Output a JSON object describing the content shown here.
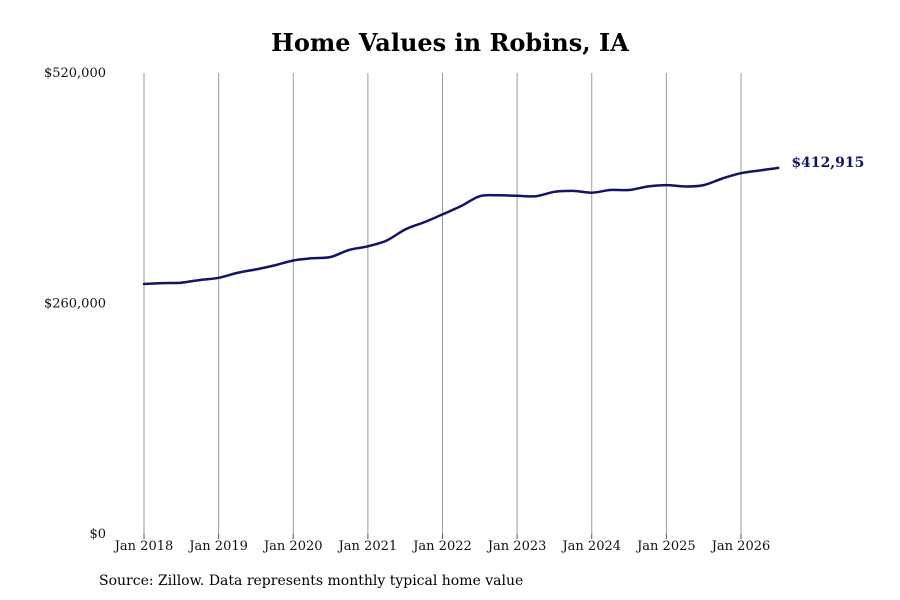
{
  "chart_data": {
    "type": "line",
    "title": "Home Values in Robins, IA",
    "xlabel": "",
    "ylabel": "",
    "ylim": [
      0,
      520000
    ],
    "y_ticks": [
      {
        "value": 0,
        "label": "$0"
      },
      {
        "value": 260000,
        "label": "$260,000"
      },
      {
        "value": 520000,
        "label": "$520,000"
      }
    ],
    "x_ticks": [
      {
        "value": 2018,
        "label": "Jan 2018"
      },
      {
        "value": 2019,
        "label": "Jan 2019"
      },
      {
        "value": 2020,
        "label": "Jan 2020"
      },
      {
        "value": 2021,
        "label": "Jan 2021"
      },
      {
        "value": 2022,
        "label": "Jan 2022"
      },
      {
        "value": 2023,
        "label": "Jan 2023"
      },
      {
        "value": 2024,
        "label": "Jan 2024"
      },
      {
        "value": 2025,
        "label": "Jan 2025"
      },
      {
        "value": 2026,
        "label": "Jan 2026"
      }
    ],
    "grid": "vertical",
    "series": [
      {
        "color": "#141464",
        "x": [
          2018.0,
          2018.25,
          2018.5,
          2018.75,
          2019.0,
          2019.25,
          2019.5,
          2019.75,
          2020.0,
          2020.25,
          2020.5,
          2020.75,
          2021.0,
          2021.25,
          2021.5,
          2021.75,
          2022.0,
          2022.25,
          2022.5,
          2022.75,
          2023.0,
          2023.25,
          2023.5,
          2023.75,
          2024.0,
          2024.25,
          2024.5,
          2024.75,
          2025.0,
          2025.25,
          2025.5,
          2025.75,
          2026.0,
          2026.25,
          2026.5
        ],
        "values": [
          282000,
          283000,
          283500,
          286500,
          289000,
          294500,
          298500,
          303000,
          308500,
          311000,
          312500,
          320500,
          324500,
          331000,
          343500,
          351500,
          360500,
          370000,
          381000,
          382000,
          381500,
          381000,
          386000,
          387000,
          385000,
          388000,
          388000,
          392000,
          393500,
          392000,
          393500,
          401000,
          407000,
          410000,
          412915
        ]
      }
    ],
    "end_label": "$412,915",
    "source": "Source: Zillow. Data represents monthly typical home value"
  }
}
